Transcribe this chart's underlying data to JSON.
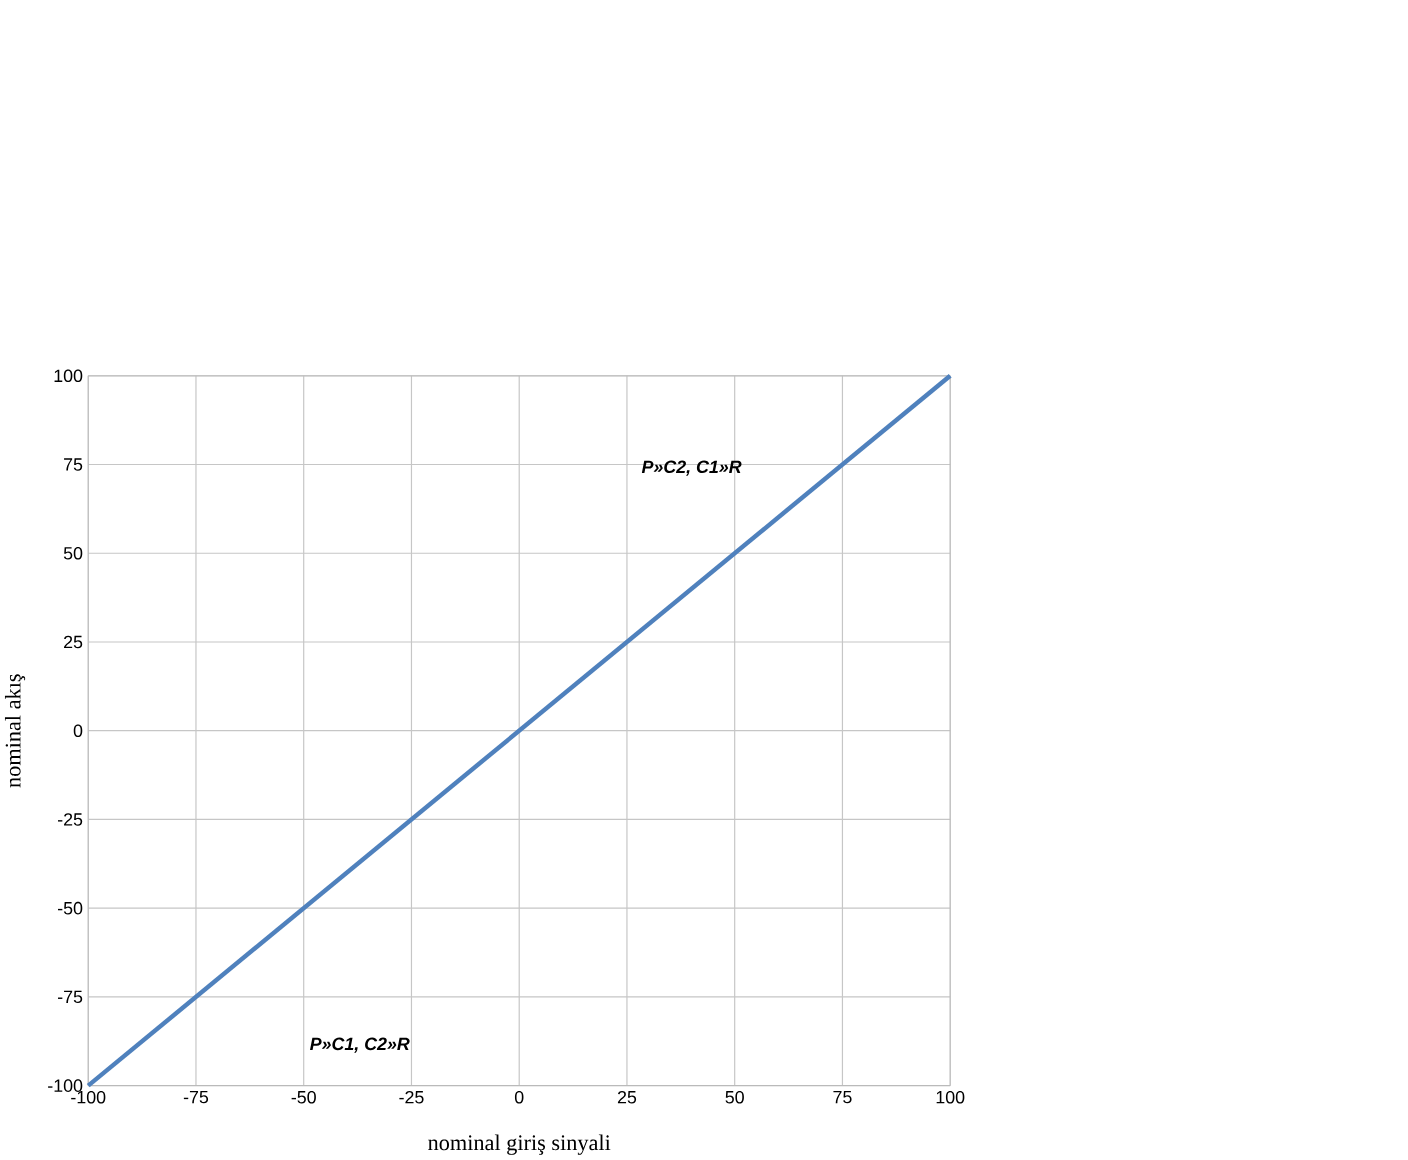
{
  "chart_data": {
    "type": "line",
    "xlabel": "nominal giriş sinyali",
    "ylabel": "nominal akış",
    "x": [
      -100,
      100
    ],
    "series": [
      {
        "color": "#4f81bd",
        "values": [
          -100,
          100
        ]
      }
    ],
    "xlim": [
      -100,
      100
    ],
    "ylim": [
      -100,
      100
    ],
    "xticks": [
      -100,
      -75,
      -50,
      -25,
      0,
      25,
      50,
      75,
      100
    ],
    "yticks": [
      -100,
      -75,
      -50,
      -25,
      0,
      25,
      50,
      75,
      100
    ],
    "grid": true,
    "marker": "none",
    "line_style": "solid",
    "annotations": [
      "P»C2, C1»R",
      "P»C1, C2»R"
    ]
  }
}
